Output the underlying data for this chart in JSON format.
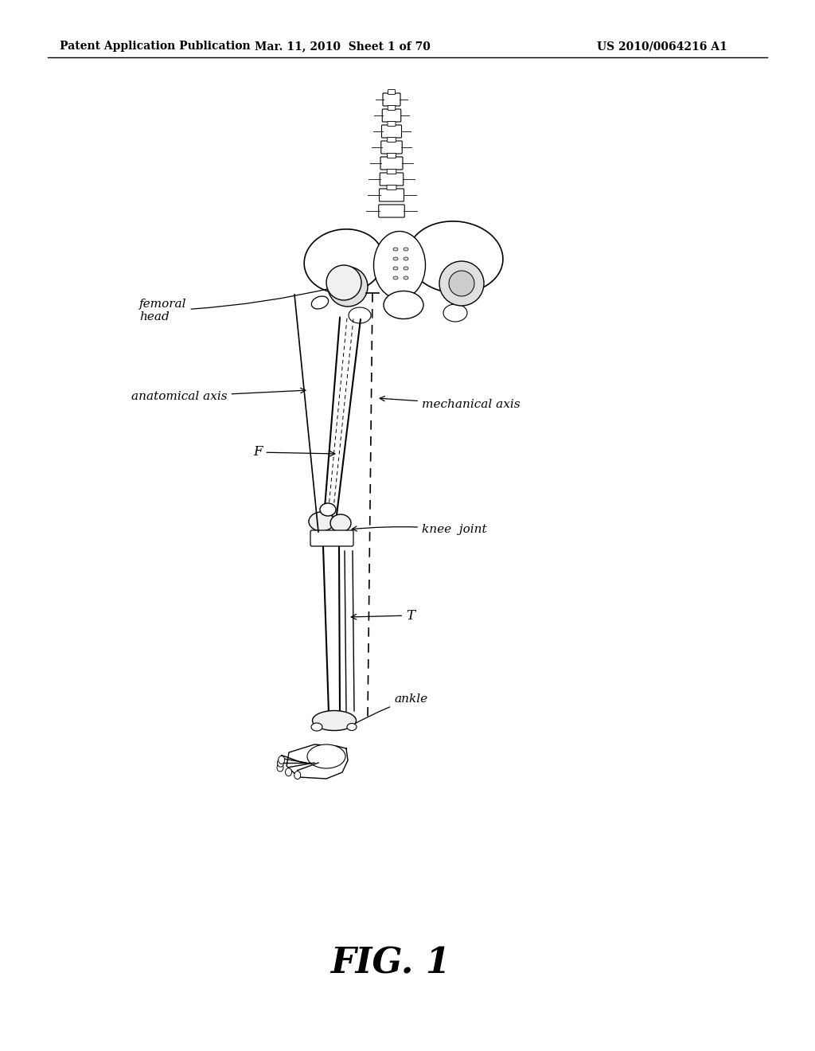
{
  "bg_color": "#ffffff",
  "header_left": "Patent Application Publication",
  "header_center": "Mar. 11, 2010  Sheet 1 of 70",
  "header_right": "US 2010/0064216 A1",
  "fig_label": "FIG. 1",
  "fig_label_fontsize": 32
}
